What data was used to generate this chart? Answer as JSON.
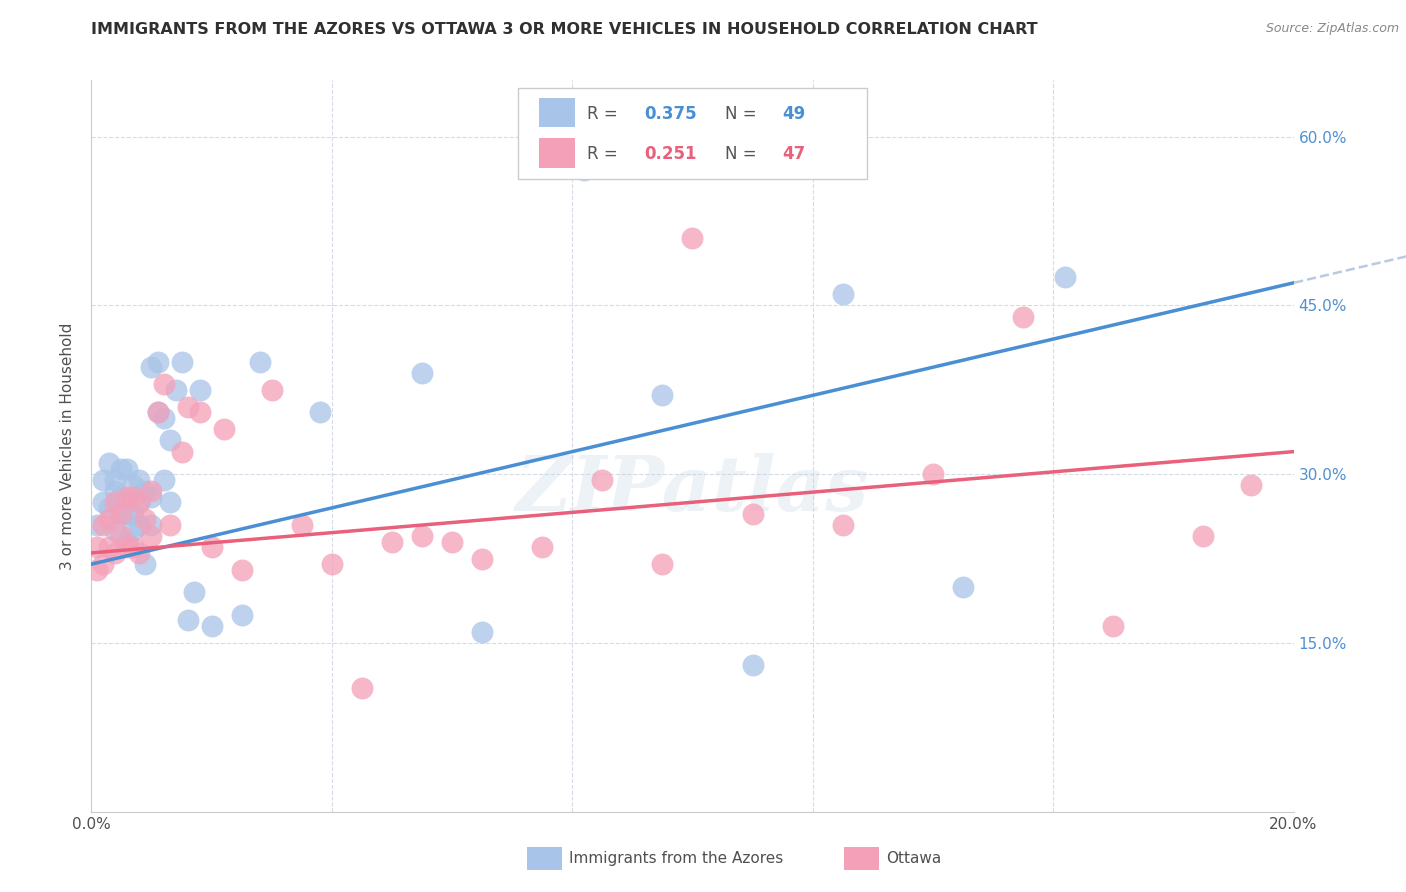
{
  "title": "IMMIGRANTS FROM THE AZORES VS OTTAWA 3 OR MORE VEHICLES IN HOUSEHOLD CORRELATION CHART",
  "source": "Source: ZipAtlas.com",
  "ylabel": "3 or more Vehicles in Household",
  "watermark": "ZIPatlas",
  "xlim": [
    0.0,
    0.2
  ],
  "ylim": [
    0.0,
    0.65
  ],
  "xticks": [
    0.0,
    0.04,
    0.08,
    0.12,
    0.16,
    0.2
  ],
  "yticks": [
    0.0,
    0.15,
    0.3,
    0.45,
    0.6
  ],
  "xtick_labels": [
    "0.0%",
    "",
    "",
    "",
    "",
    "20.0%"
  ],
  "ytick_labels_right": [
    "",
    "15.0%",
    "30.0%",
    "45.0%",
    "60.0%"
  ],
  "series1_color": "#a8c4e8",
  "series2_color": "#f4a0b8",
  "trend1_color": "#4a8fd4",
  "trend2_color": "#e8607a",
  "trend1_dash_color": "#b8cce0",
  "background_color": "#ffffff",
  "grid_color": "#d0d8e4",
  "title_color": "#303030",
  "axis_label_color": "#505050",
  "right_axis_color": "#5090d0",
  "R1": "0.375",
  "N1": "49",
  "R2": "0.251",
  "N2": "47",
  "series1_x": [
    0.001,
    0.002,
    0.002,
    0.003,
    0.003,
    0.004,
    0.004,
    0.004,
    0.005,
    0.005,
    0.005,
    0.006,
    0.006,
    0.006,
    0.006,
    0.007,
    0.007,
    0.007,
    0.008,
    0.008,
    0.008,
    0.009,
    0.009,
    0.01,
    0.01,
    0.01,
    0.011,
    0.011,
    0.012,
    0.012,
    0.013,
    0.013,
    0.014,
    0.015,
    0.016,
    0.017,
    0.018,
    0.02,
    0.025,
    0.028,
    0.038,
    0.055,
    0.065,
    0.082,
    0.095,
    0.11,
    0.125,
    0.145,
    0.162
  ],
  "series1_y": [
    0.255,
    0.275,
    0.295,
    0.27,
    0.31,
    0.25,
    0.285,
    0.295,
    0.265,
    0.28,
    0.305,
    0.24,
    0.265,
    0.275,
    0.305,
    0.25,
    0.265,
    0.29,
    0.255,
    0.275,
    0.295,
    0.22,
    0.285,
    0.255,
    0.28,
    0.395,
    0.355,
    0.4,
    0.295,
    0.35,
    0.275,
    0.33,
    0.375,
    0.4,
    0.17,
    0.195,
    0.375,
    0.165,
    0.175,
    0.4,
    0.355,
    0.39,
    0.16,
    0.57,
    0.37,
    0.13,
    0.46,
    0.2,
    0.475
  ],
  "series2_x": [
    0.001,
    0.001,
    0.002,
    0.002,
    0.003,
    0.003,
    0.004,
    0.004,
    0.005,
    0.005,
    0.006,
    0.006,
    0.007,
    0.007,
    0.008,
    0.008,
    0.009,
    0.01,
    0.01,
    0.011,
    0.012,
    0.013,
    0.015,
    0.016,
    0.018,
    0.02,
    0.022,
    0.025,
    0.03,
    0.035,
    0.04,
    0.05,
    0.055,
    0.065,
    0.075,
    0.085,
    0.095,
    0.11,
    0.125,
    0.14,
    0.155,
    0.17,
    0.185,
    0.193,
    0.1,
    0.06,
    0.045
  ],
  "series2_y": [
    0.215,
    0.235,
    0.22,
    0.255,
    0.235,
    0.26,
    0.23,
    0.275,
    0.245,
    0.265,
    0.235,
    0.28,
    0.235,
    0.28,
    0.23,
    0.275,
    0.26,
    0.245,
    0.285,
    0.355,
    0.38,
    0.255,
    0.32,
    0.36,
    0.355,
    0.235,
    0.34,
    0.215,
    0.375,
    0.255,
    0.22,
    0.24,
    0.245,
    0.225,
    0.235,
    0.295,
    0.22,
    0.265,
    0.255,
    0.3,
    0.44,
    0.165,
    0.245,
    0.29,
    0.51,
    0.24,
    0.11
  ]
}
